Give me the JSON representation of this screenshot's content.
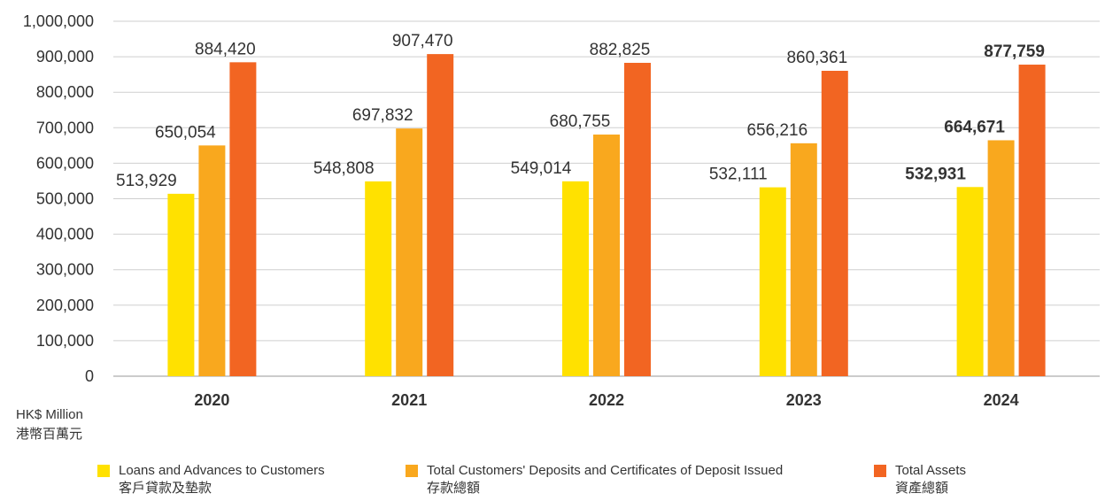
{
  "chart_data": {
    "type": "bar",
    "categories": [
      "2020",
      "2021",
      "2022",
      "2023",
      "2024"
    ],
    "series": [
      {
        "name": "Loans and Advances to Customers",
        "name_zh": "客戶貸款及墊款",
        "color": "#FFE100",
        "values": [
          513929,
          548808,
          549014,
          532111,
          532931
        ],
        "labels": [
          "513,929",
          "548,808",
          "549,014",
          "532,111",
          "532,931"
        ]
      },
      {
        "name": "Total Customers' Deposits and Certificates of Deposit Issued",
        "name_zh": "存款總額",
        "color": "#F9A81E",
        "values": [
          650054,
          697832,
          680755,
          656216,
          664671
        ],
        "labels": [
          "650,054",
          "697,832",
          "680,755",
          "656,216",
          "664,671"
        ]
      },
      {
        "name": "Total Assets",
        "name_zh": "資產總額",
        "color": "#F26522",
        "values": [
          884420,
          907470,
          882825,
          860361,
          877759
        ],
        "labels": [
          "884,420",
          "907,470",
          "882,825",
          "860,361",
          "877,759"
        ]
      }
    ],
    "ylim": [
      0,
      1000000
    ],
    "yticks": [
      0,
      100000,
      200000,
      300000,
      400000,
      500000,
      600000,
      700000,
      800000,
      900000,
      1000000
    ],
    "ytick_labels": [
      "0",
      "100,000",
      "200,000",
      "300,000",
      "400,000",
      "500,000",
      "600,000",
      "700,000",
      "800,000",
      "900,000",
      "1,000,000"
    ],
    "ylabel": "HK$ Million",
    "ylabel_zh": "港幣百萬元",
    "grid": true,
    "legend": "bottom",
    "highlight_category": "2024"
  }
}
